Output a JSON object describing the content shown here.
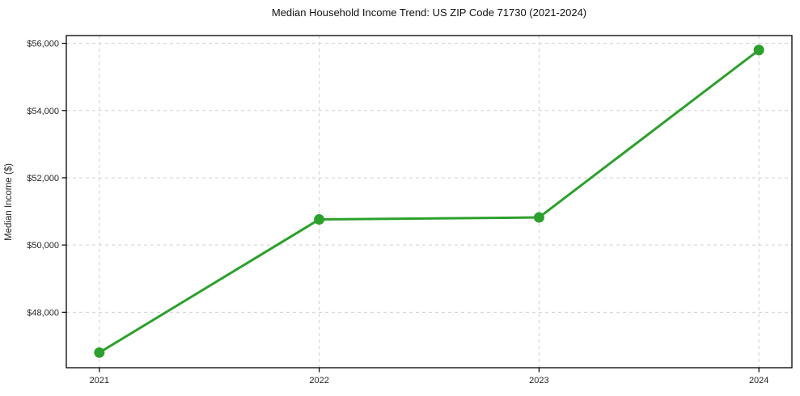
{
  "window": {
    "kind": "chart-figure",
    "background": "#ffffff"
  },
  "chart_data": {
    "type": "line",
    "title": "Median Household Income Trend: US ZIP Code 71730 (2021-2024)",
    "xlabel": "",
    "ylabel": "Median Income ($)",
    "categories": [
      "2021",
      "2022",
      "2023",
      "2024"
    ],
    "series": [
      {
        "name": "Median Household Income",
        "values": [
          46800,
          50760,
          50820,
          55800
        ],
        "color": "#2ca02c",
        "marker": "circle",
        "line_width": 3,
        "marker_radius": 6.5
      }
    ],
    "y_ticks": [
      {
        "value": 48000,
        "label": "$48,000"
      },
      {
        "value": 50000,
        "label": "$50,000"
      },
      {
        "value": 52000,
        "label": "$52,000"
      },
      {
        "value": 54000,
        "label": "$54,000"
      },
      {
        "value": 56000,
        "label": "$56,000"
      }
    ],
    "ylim": [
      46350,
      56230
    ],
    "grid": true,
    "grid_style": "dashed",
    "grid_color": "#cfcfcf",
    "spine_color": "#000000",
    "tick_color": "#000000",
    "tick_label_color": "#262626",
    "legend_position": "none"
  }
}
